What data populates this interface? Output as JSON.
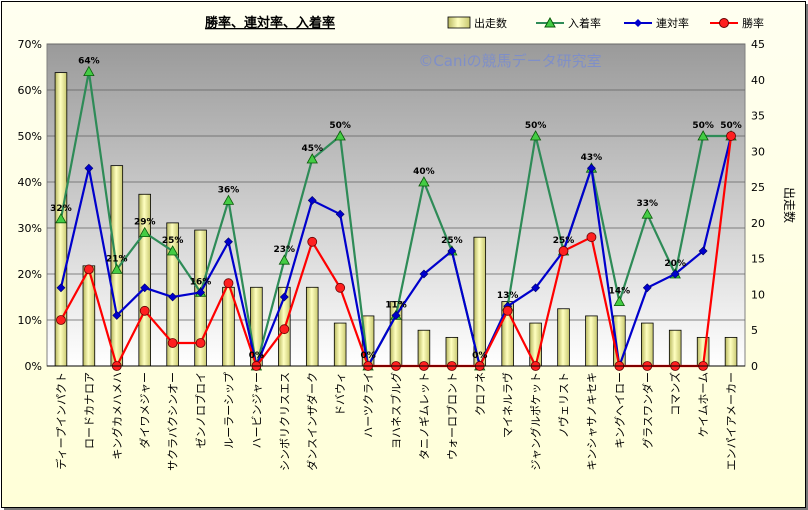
{
  "chart_data": {
    "type": "bar+line",
    "title": "勝率、連対率、入着率",
    "watermark": "©Caniの競馬データ研究室",
    "y_right_label": "出走数",
    "y_left_range": [
      0,
      70
    ],
    "y_left_ticks": [
      "0%",
      "10%",
      "20%",
      "30%",
      "40%",
      "50%",
      "60%",
      "70%"
    ],
    "y_right_range": [
      0,
      45
    ],
    "y_right_ticks": [
      "0",
      "5",
      "10",
      "15",
      "20",
      "25",
      "30",
      "35",
      "40",
      "45"
    ],
    "grid": true,
    "legend_position": "top-right",
    "categories": [
      "ディープインパクト",
      "ロードカナロア",
      "キングカメハメハ",
      "ダイワメジャー",
      "サクラバクシンオー",
      "ゼンノロブロイ",
      "ルーラーシップ",
      "ハービンジャー",
      "シンボリクリスエス",
      "ダンスインザダーク",
      "ドバウィ",
      "ハーツクライ",
      "ヨハネスブルグ",
      "タニノギムレット",
      "ウォーロブロント",
      "クロフネ",
      "マイネルラヴ",
      "ジャングルポケット",
      "ノヴェリスト",
      "キンシャサノキセキ",
      "キングヘイロー",
      "グラスワンダー",
      "コマンズ",
      "ケイムホーム",
      "エンパイアメーカー"
    ],
    "series": [
      {
        "name": "出走数",
        "axis": "right",
        "kind": "bar",
        "color": "#eeee99",
        "values": [
          41,
          14,
          28,
          24,
          20,
          19,
          11,
          11,
          11,
          11,
          6,
          7,
          9,
          5,
          4,
          18,
          9,
          6,
          8,
          7,
          7,
          6,
          5,
          4,
          4
        ]
      },
      {
        "name": "入着率",
        "axis": "left",
        "kind": "line",
        "color": "#2e8b57",
        "marker": "triangle",
        "values": [
          32,
          64,
          21,
          29,
          25,
          16,
          36,
          0,
          23,
          45,
          50,
          0,
          11,
          40,
          25,
          0,
          13,
          50,
          25,
          43,
          14,
          33,
          20,
          50,
          50
        ]
      },
      {
        "name": "連対率",
        "axis": "left",
        "kind": "line",
        "color": "#0000cc",
        "marker": "diamond",
        "values": [
          17,
          43,
          11,
          17,
          15,
          16,
          27,
          0,
          15,
          36,
          33,
          0,
          11,
          20,
          25,
          0,
          13,
          17,
          25,
          43,
          0,
          17,
          20,
          25,
          50
        ]
      },
      {
        "name": "勝率",
        "axis": "left",
        "kind": "line",
        "color": "#ff0000",
        "marker": "circle",
        "values": [
          10,
          21,
          0,
          12,
          5,
          5,
          18,
          0,
          8,
          27,
          17,
          0,
          0,
          0,
          0,
          0,
          12,
          0,
          25,
          28,
          0,
          0,
          0,
          0,
          50
        ]
      }
    ],
    "data_labels": [
      "32%",
      "64%",
      "21%",
      "29%",
      "25%",
      "16%",
      "36%",
      "0%",
      "23%",
      "45%",
      "50%",
      "0%",
      "11%",
      "40%",
      "25%",
      "0%",
      "13%",
      "50%",
      "25%",
      "43%",
      "14%",
      "33%",
      "20%",
      "50%",
      "50%"
    ]
  }
}
